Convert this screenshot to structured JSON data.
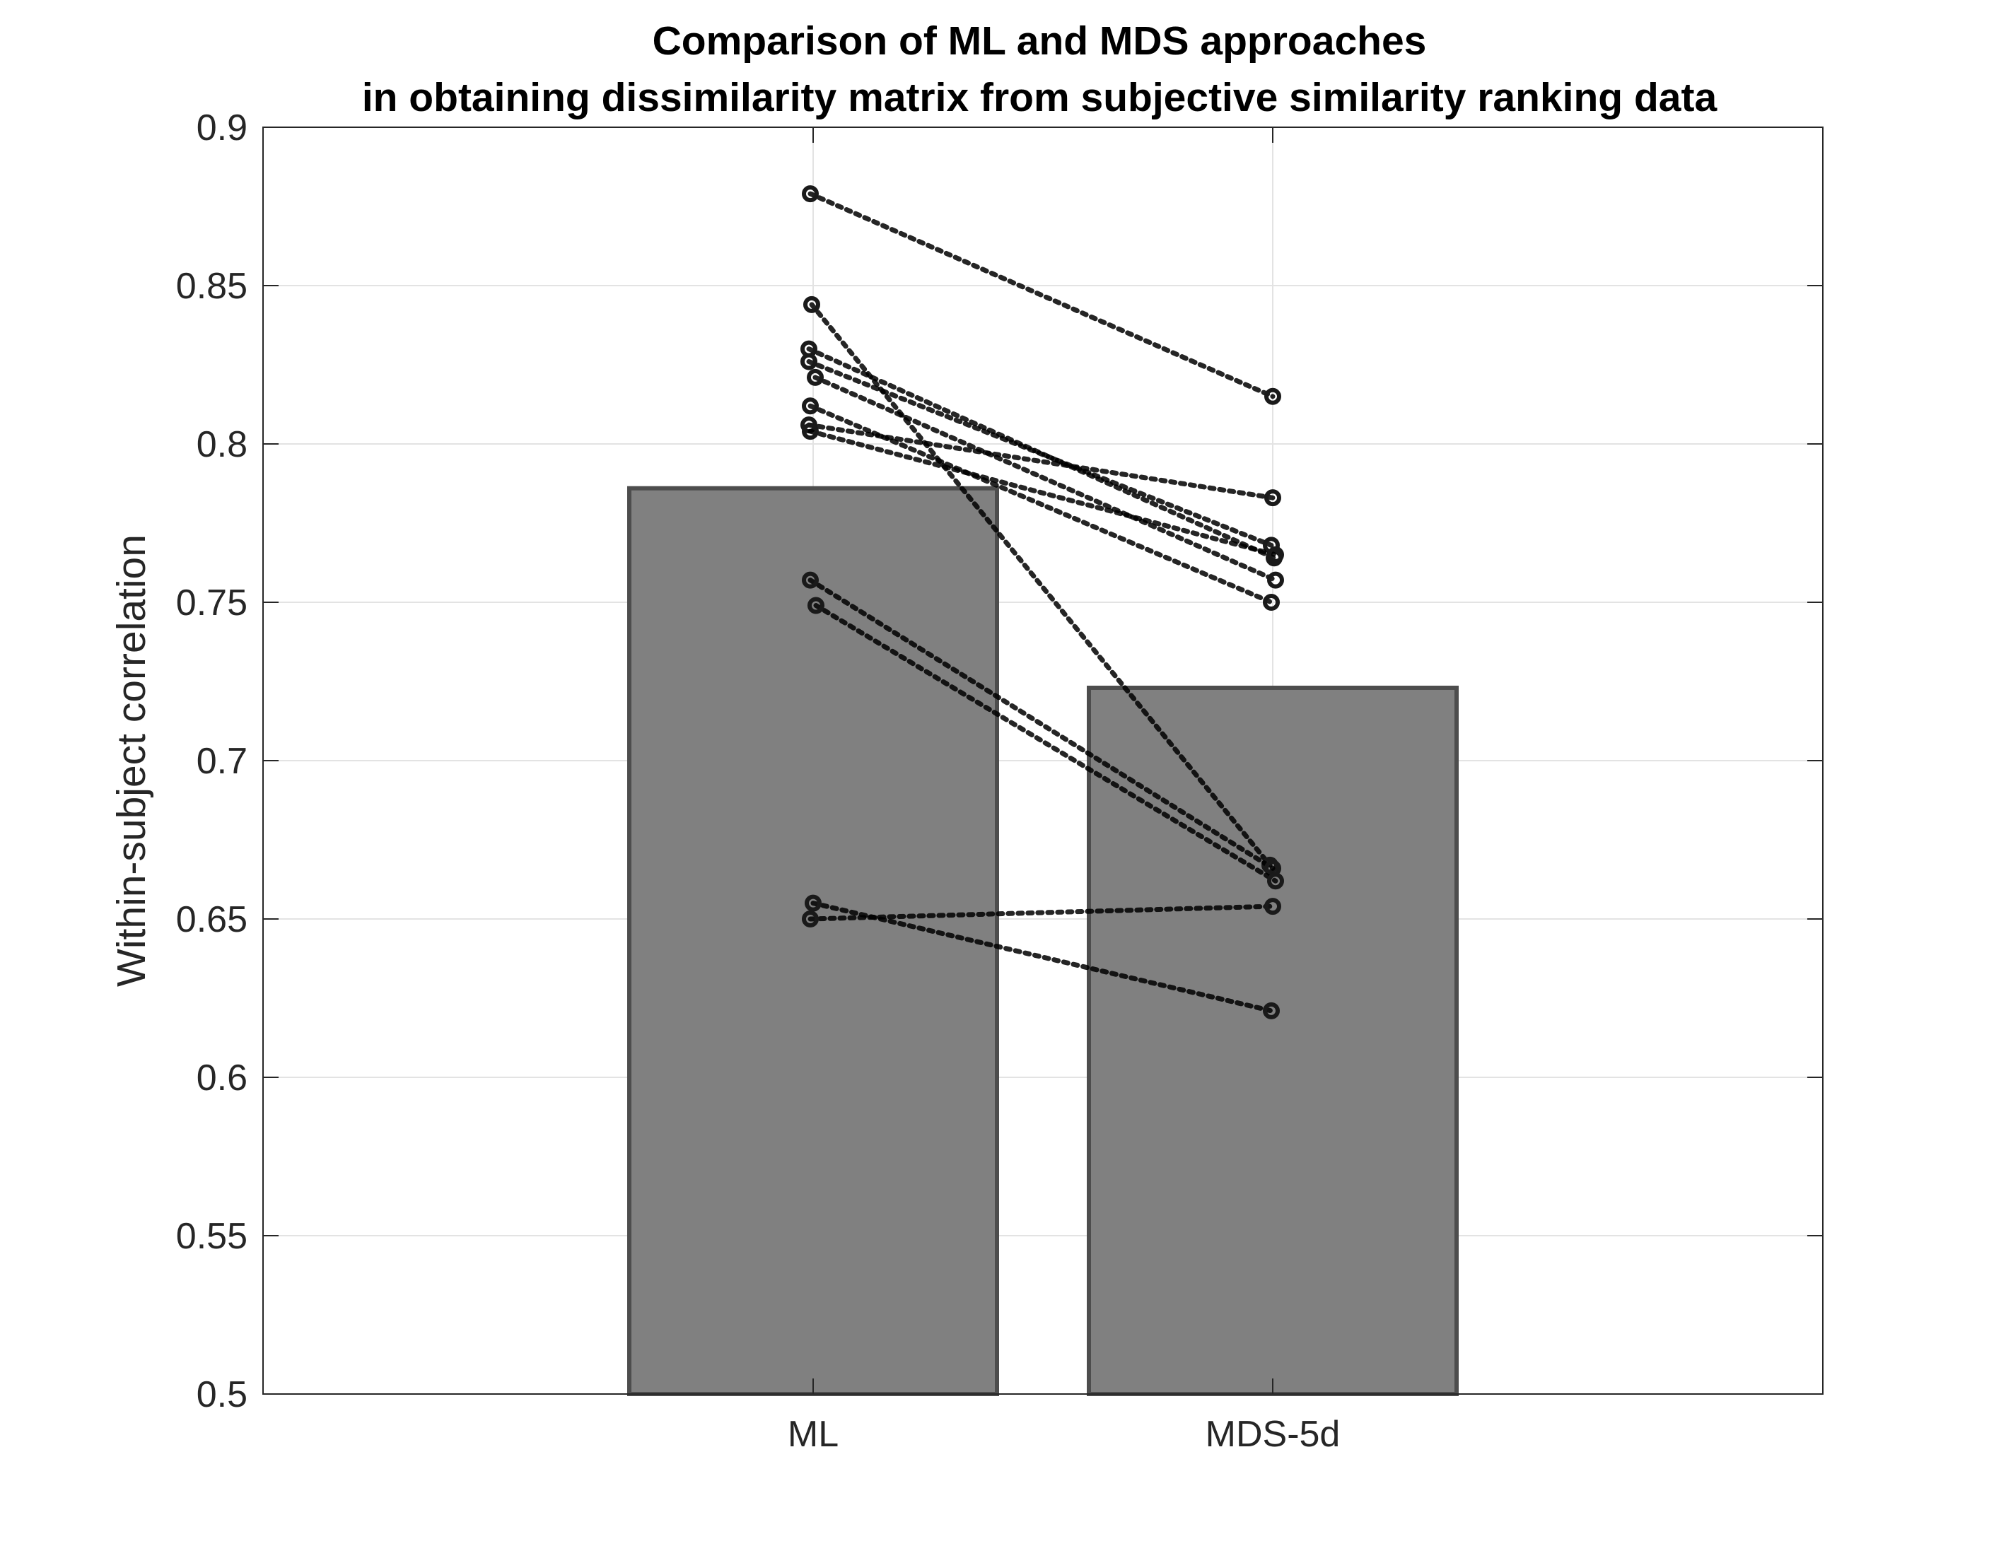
{
  "chart_data": {
    "type": "bar",
    "title": "Comparison of ML and MDS approaches",
    "subtitle": "in obtaining dissimilarity matrix from subjective similarity ranking data",
    "xlabel": "",
    "ylabel": "Within-subject correlation",
    "categories": [
      "ML",
      "MDS-5d"
    ],
    "values": [
      0.786,
      0.723
    ],
    "ylim": [
      0.5,
      0.9
    ],
    "yticks": [
      "0.5",
      "0.55",
      "0.6",
      "0.65",
      "0.7",
      "0.75",
      "0.8",
      "0.85",
      "0.9"
    ],
    "grid": true,
    "legend": "none",
    "bar_color": "#808080",
    "bar_edge_color": "#4d4d4d",
    "subject_line_style": "dotted",
    "subjects": [
      {
        "ml": 0.879,
        "mds5d": 0.815
      },
      {
        "ml": 0.844,
        "mds5d": 0.667
      },
      {
        "ml": 0.83,
        "mds5d": 0.764
      },
      {
        "ml": 0.826,
        "mds5d": 0.768
      },
      {
        "ml": 0.821,
        "mds5d": 0.757
      },
      {
        "ml": 0.812,
        "mds5d": 0.75
      },
      {
        "ml": 0.806,
        "mds5d": 0.783
      },
      {
        "ml": 0.804,
        "mds5d": 0.765
      },
      {
        "ml": 0.757,
        "mds5d": 0.666
      },
      {
        "ml": 0.749,
        "mds5d": 0.662
      },
      {
        "ml": 0.655,
        "mds5d": 0.621
      },
      {
        "ml": 0.65,
        "mds5d": 0.654
      }
    ]
  }
}
